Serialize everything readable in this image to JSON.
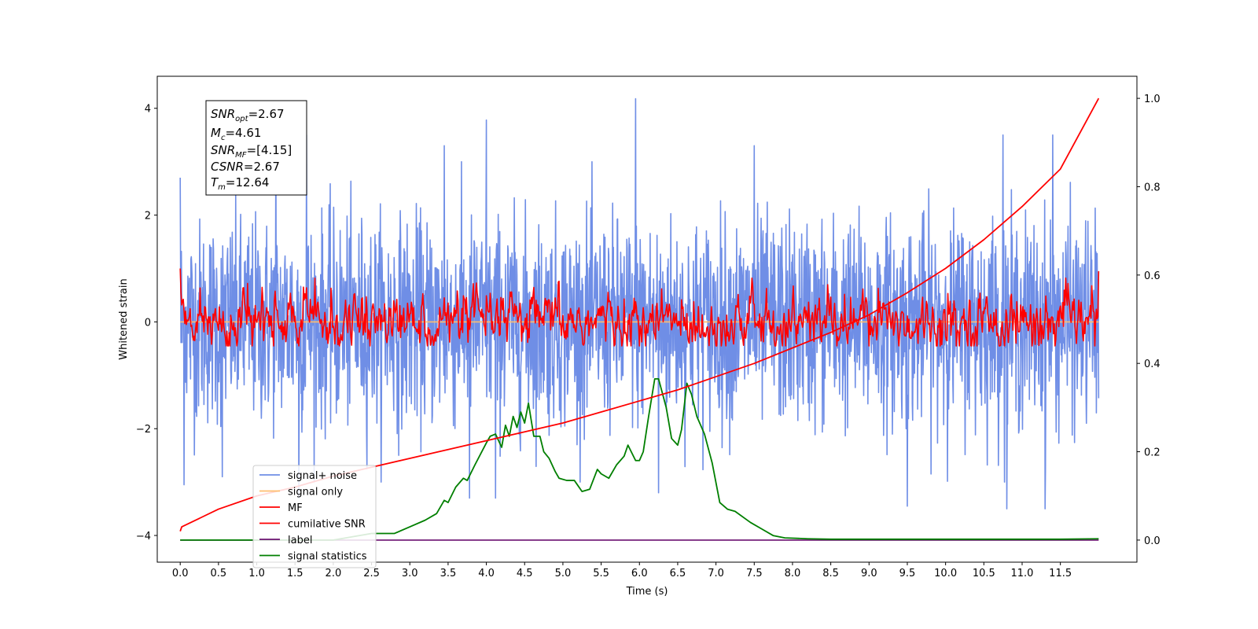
{
  "chart_data": {
    "type": "line",
    "xlabel": "Time (s)",
    "ylabel": "Whitened strain",
    "xlim": [
      -0.3,
      12.5
    ],
    "ylim_left": [
      -4.5,
      4.6
    ],
    "ylim_right": [
      -0.05,
      1.05
    ],
    "x_ticks": [
      "0.0",
      "0.5",
      "1.0",
      "1.5",
      "2.0",
      "2.5",
      "3.0",
      "3.5",
      "4.0",
      "4.5",
      "5.0",
      "5.5",
      "6.0",
      "6.5",
      "7.0",
      "7.5",
      "8.0",
      "8.5",
      "9.0",
      "9.5",
      "10.0",
      "10.5",
      "11.0",
      "11.5"
    ],
    "y_ticks_left": [
      "-4",
      "-2",
      "0",
      "2",
      "4"
    ],
    "y_ticks_right": [
      "0.0",
      "0.2",
      "0.4",
      "0.6",
      "0.8",
      "1.0"
    ],
    "legend_position": "lower-left",
    "info_box": {
      "snr_opt": {
        "base": "SNR",
        "sub": "opt",
        "value": "=2.67"
      },
      "mc": {
        "base": "M",
        "sub": "c",
        "value": "=4.61"
      },
      "snr_mf": {
        "base": "SNR",
        "sub": "MF",
        "value": "=[4.15]"
      },
      "csnr": {
        "base": "CSNR",
        "value": "=2.67"
      },
      "tm": {
        "base": "T",
        "sub": "m",
        "value": "=12.64"
      }
    },
    "series": [
      {
        "name": "signal+ noise",
        "axis": "left",
        "color": "#6f8ee6",
        "style": "noise",
        "t_range": [
          0,
          12
        ],
        "sigma": 0.95,
        "peaks": [
          [
            0.0,
            2.7
          ],
          [
            0.05,
            -3.05
          ],
          [
            0.55,
            -2.9
          ],
          [
            1.25,
            3.6
          ],
          [
            1.55,
            -3.3
          ],
          [
            1.65,
            3.5
          ],
          [
            3.45,
            3.3
          ],
          [
            3.78,
            -3.3
          ],
          [
            4.0,
            3.78
          ],
          [
            4.12,
            -3.3
          ],
          [
            5.95,
            4.18
          ],
          [
            6.25,
            -3.2
          ],
          [
            7.5,
            3.3
          ],
          [
            9.5,
            -3.45
          ],
          [
            10.75,
            3.5
          ],
          [
            10.8,
            -3.5
          ],
          [
            11.3,
            -3.5
          ],
          [
            11.4,
            3.5
          ]
        ]
      },
      {
        "name": "signal only",
        "axis": "left",
        "color": "#ffbe6f",
        "style": "flat",
        "t_range": [
          0,
          12
        ],
        "value": 0
      },
      {
        "name": "MF",
        "axis": "left",
        "color": "#ff0000",
        "style": "mf",
        "t_range": [
          0,
          12
        ],
        "sigma": 0.22,
        "start": 1.0,
        "end": 0.95
      },
      {
        "name": "cumilative SNR",
        "axis": "right",
        "color": "#ff0000",
        "style": "curve",
        "x": [
          0.0,
          0.02,
          0.5,
          1.0,
          1.5,
          2.0,
          2.5,
          3.0,
          3.5,
          4.0,
          4.5,
          5.0,
          5.5,
          6.0,
          6.5,
          7.0,
          7.5,
          8.0,
          8.5,
          9.0,
          9.5,
          10.0,
          10.5,
          11.0,
          11.5,
          12.0
        ],
        "y": [
          0.02,
          0.03,
          0.07,
          0.1,
          0.12,
          0.145,
          0.165,
          0.185,
          0.205,
          0.225,
          0.245,
          0.265,
          0.29,
          0.315,
          0.34,
          0.37,
          0.4,
          0.435,
          0.47,
          0.51,
          0.56,
          0.615,
          0.68,
          0.755,
          0.84,
          1.0
        ]
      },
      {
        "name": "label",
        "axis": "right",
        "color": "#6b1070",
        "style": "flat",
        "t_range": [
          0,
          12
        ],
        "value": 0.0
      },
      {
        "name": "signal statistics",
        "axis": "right",
        "color": "#007f00",
        "style": "curve",
        "x": [
          0.0,
          1.0,
          2.0,
          2.5,
          2.8,
          3.0,
          3.2,
          3.35,
          3.45,
          3.5,
          3.6,
          3.7,
          3.75,
          3.85,
          4.0,
          4.05,
          4.12,
          4.2,
          4.25,
          4.3,
          4.35,
          4.4,
          4.45,
          4.5,
          4.55,
          4.62,
          4.7,
          4.75,
          4.82,
          4.9,
          4.95,
          5.05,
          5.15,
          5.25,
          5.35,
          5.45,
          5.5,
          5.6,
          5.7,
          5.8,
          5.85,
          5.95,
          6.0,
          6.05,
          6.12,
          6.2,
          6.25,
          6.35,
          6.42,
          6.5,
          6.55,
          6.62,
          6.68,
          6.75,
          6.85,
          6.95,
          7.05,
          7.15,
          7.25,
          7.45,
          7.6,
          7.75,
          7.9,
          8.2,
          8.5,
          9.0,
          9.5,
          10.0,
          10.5,
          11.0,
          11.5,
          12.0
        ],
        "y": [
          0.0,
          0.0,
          0.0,
          0.015,
          0.015,
          0.03,
          0.045,
          0.06,
          0.09,
          0.085,
          0.12,
          0.14,
          0.135,
          0.17,
          0.22,
          0.235,
          0.24,
          0.21,
          0.26,
          0.235,
          0.28,
          0.255,
          0.29,
          0.265,
          0.31,
          0.235,
          0.235,
          0.2,
          0.185,
          0.155,
          0.14,
          0.135,
          0.135,
          0.11,
          0.115,
          0.16,
          0.15,
          0.14,
          0.17,
          0.19,
          0.215,
          0.18,
          0.18,
          0.2,
          0.28,
          0.365,
          0.365,
          0.3,
          0.23,
          0.215,
          0.25,
          0.355,
          0.33,
          0.28,
          0.24,
          0.175,
          0.085,
          0.07,
          0.065,
          0.04,
          0.025,
          0.01,
          0.005,
          0.003,
          0.002,
          0.002,
          0.002,
          0.002,
          0.002,
          0.002,
          0.002,
          0.003
        ]
      }
    ]
  }
}
